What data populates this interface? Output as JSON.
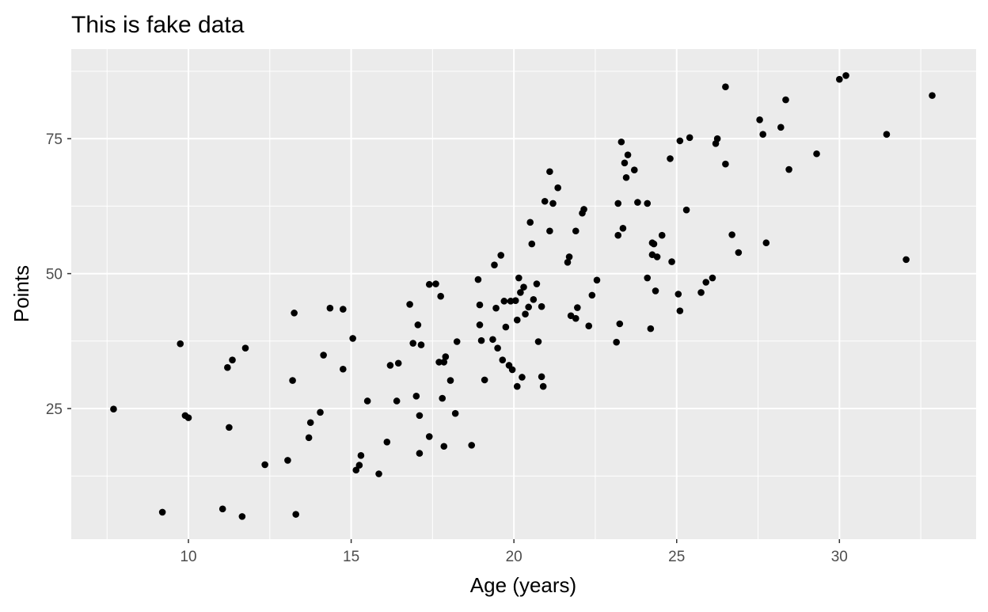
{
  "chart_data": {
    "type": "scatter",
    "title": "This is fake data",
    "xlabel": "Age (years)",
    "ylabel": "Points",
    "xlim": [
      6.4,
      34.2
    ],
    "ylim": [
      0.8,
      91.6
    ],
    "xticks": [
      10,
      15,
      20,
      25,
      30
    ],
    "yticks": [
      25,
      50,
      75
    ],
    "grid": true,
    "panel_color": "#EBEBEB",
    "grid_color": "#FFFFFF",
    "point_color": "#000000",
    "points": [
      [
        7.7,
        24.9
      ],
      [
        9.2,
        5.8
      ],
      [
        9.75,
        37.0
      ],
      [
        9.9,
        23.7
      ],
      [
        10.0,
        23.3
      ],
      [
        11.05,
        6.4
      ],
      [
        11.2,
        32.6
      ],
      [
        11.25,
        21.5
      ],
      [
        11.35,
        34.0
      ],
      [
        11.65,
        5.0
      ],
      [
        11.75,
        36.2
      ],
      [
        12.35,
        14.6
      ],
      [
        13.05,
        15.4
      ],
      [
        13.2,
        30.2
      ],
      [
        13.25,
        42.7
      ],
      [
        13.3,
        5.4
      ],
      [
        13.7,
        19.6
      ],
      [
        13.75,
        22.4
      ],
      [
        14.05,
        24.3
      ],
      [
        14.15,
        34.9
      ],
      [
        14.35,
        43.6
      ],
      [
        14.75,
        43.4
      ],
      [
        14.75,
        32.3
      ],
      [
        15.05,
        38.0
      ],
      [
        15.15,
        13.6
      ],
      [
        15.25,
        14.5
      ],
      [
        15.3,
        16.3
      ],
      [
        15.5,
        26.4
      ],
      [
        15.85,
        12.9
      ],
      [
        16.1,
        18.8
      ],
      [
        16.2,
        33.0
      ],
      [
        16.4,
        26.4
      ],
      [
        16.45,
        33.4
      ],
      [
        16.8,
        44.3
      ],
      [
        16.9,
        37.1
      ],
      [
        17.0,
        27.3
      ],
      [
        17.05,
        40.5
      ],
      [
        17.1,
        23.7
      ],
      [
        17.1,
        16.7
      ],
      [
        17.15,
        36.8
      ],
      [
        17.4,
        19.8
      ],
      [
        17.4,
        48.0
      ],
      [
        17.6,
        48.1
      ],
      [
        17.7,
        33.6
      ],
      [
        17.75,
        45.8
      ],
      [
        17.8,
        26.9
      ],
      [
        17.85,
        18.0
      ],
      [
        17.85,
        33.6
      ],
      [
        17.9,
        34.6
      ],
      [
        18.05,
        30.2
      ],
      [
        18.2,
        24.1
      ],
      [
        18.25,
        37.4
      ],
      [
        18.7,
        18.2
      ],
      [
        18.9,
        48.9
      ],
      [
        18.95,
        44.2
      ],
      [
        18.95,
        40.5
      ],
      [
        19.0,
        37.6
      ],
      [
        19.1,
        30.3
      ],
      [
        19.35,
        37.8
      ],
      [
        19.4,
        51.6
      ],
      [
        19.5,
        36.2
      ],
      [
        19.45,
        43.6
      ],
      [
        19.6,
        53.4
      ],
      [
        19.65,
        34.0
      ],
      [
        19.7,
        44.9
      ],
      [
        19.75,
        40.1
      ],
      [
        19.85,
        33.0
      ],
      [
        19.9,
        44.9
      ],
      [
        19.95,
        32.2
      ],
      [
        20.05,
        45.0
      ],
      [
        20.1,
        41.4
      ],
      [
        20.1,
        29.1
      ],
      [
        20.15,
        49.2
      ],
      [
        20.2,
        46.5
      ],
      [
        20.25,
        30.8
      ],
      [
        20.35,
        42.5
      ],
      [
        20.3,
        47.5
      ],
      [
        20.45,
        43.8
      ],
      [
        20.5,
        59.5
      ],
      [
        20.55,
        55.5
      ],
      [
        20.6,
        45.2
      ],
      [
        20.7,
        48.1
      ],
      [
        20.75,
        37.4
      ],
      [
        20.85,
        43.9
      ],
      [
        20.85,
        30.9
      ],
      [
        20.9,
        29.1
      ],
      [
        20.95,
        63.4
      ],
      [
        21.1,
        68.9
      ],
      [
        21.1,
        57.9
      ],
      [
        21.2,
        63.0
      ],
      [
        21.35,
        65.9
      ],
      [
        21.65,
        52.1
      ],
      [
        21.7,
        53.1
      ],
      [
        21.75,
        42.2
      ],
      [
        21.9,
        41.7
      ],
      [
        21.9,
        57.9
      ],
      [
        21.95,
        43.7
      ],
      [
        22.1,
        61.2
      ],
      [
        22.15,
        61.9
      ],
      [
        22.3,
        40.3
      ],
      [
        22.4,
        46.0
      ],
      [
        22.55,
        48.8
      ],
      [
        23.15,
        37.3
      ],
      [
        23.2,
        63.0
      ],
      [
        23.2,
        57.1
      ],
      [
        23.25,
        40.7
      ],
      [
        23.3,
        74.4
      ],
      [
        23.35,
        58.4
      ],
      [
        23.4,
        70.5
      ],
      [
        23.45,
        67.8
      ],
      [
        23.5,
        72.0
      ],
      [
        23.7,
        69.2
      ],
      [
        23.8,
        63.2
      ],
      [
        24.1,
        63.0
      ],
      [
        24.1,
        49.2
      ],
      [
        24.2,
        39.8
      ],
      [
        24.25,
        55.7
      ],
      [
        24.25,
        53.5
      ],
      [
        24.3,
        55.5
      ],
      [
        24.35,
        46.8
      ],
      [
        24.4,
        53.1
      ],
      [
        24.55,
        57.1
      ],
      [
        24.8,
        71.3
      ],
      [
        24.85,
        52.2
      ],
      [
        25.05,
        46.2
      ],
      [
        25.1,
        43.1
      ],
      [
        25.1,
        74.6
      ],
      [
        25.3,
        61.8
      ],
      [
        25.4,
        75.2
      ],
      [
        25.75,
        46.5
      ],
      [
        25.9,
        48.4
      ],
      [
        26.1,
        49.2
      ],
      [
        26.2,
        74.1
      ],
      [
        26.25,
        75.0
      ],
      [
        26.5,
        84.6
      ],
      [
        26.5,
        70.3
      ],
      [
        26.7,
        57.2
      ],
      [
        26.9,
        53.9
      ],
      [
        27.55,
        78.5
      ],
      [
        27.65,
        75.8
      ],
      [
        27.75,
        55.7
      ],
      [
        28.2,
        77.1
      ],
      [
        28.35,
        82.2
      ],
      [
        28.45,
        69.3
      ],
      [
        29.3,
        72.2
      ],
      [
        30.0,
        86.0
      ],
      [
        30.2,
        86.7
      ],
      [
        31.45,
        75.8
      ],
      [
        32.05,
        52.6
      ],
      [
        32.85,
        83.0
      ]
    ]
  }
}
